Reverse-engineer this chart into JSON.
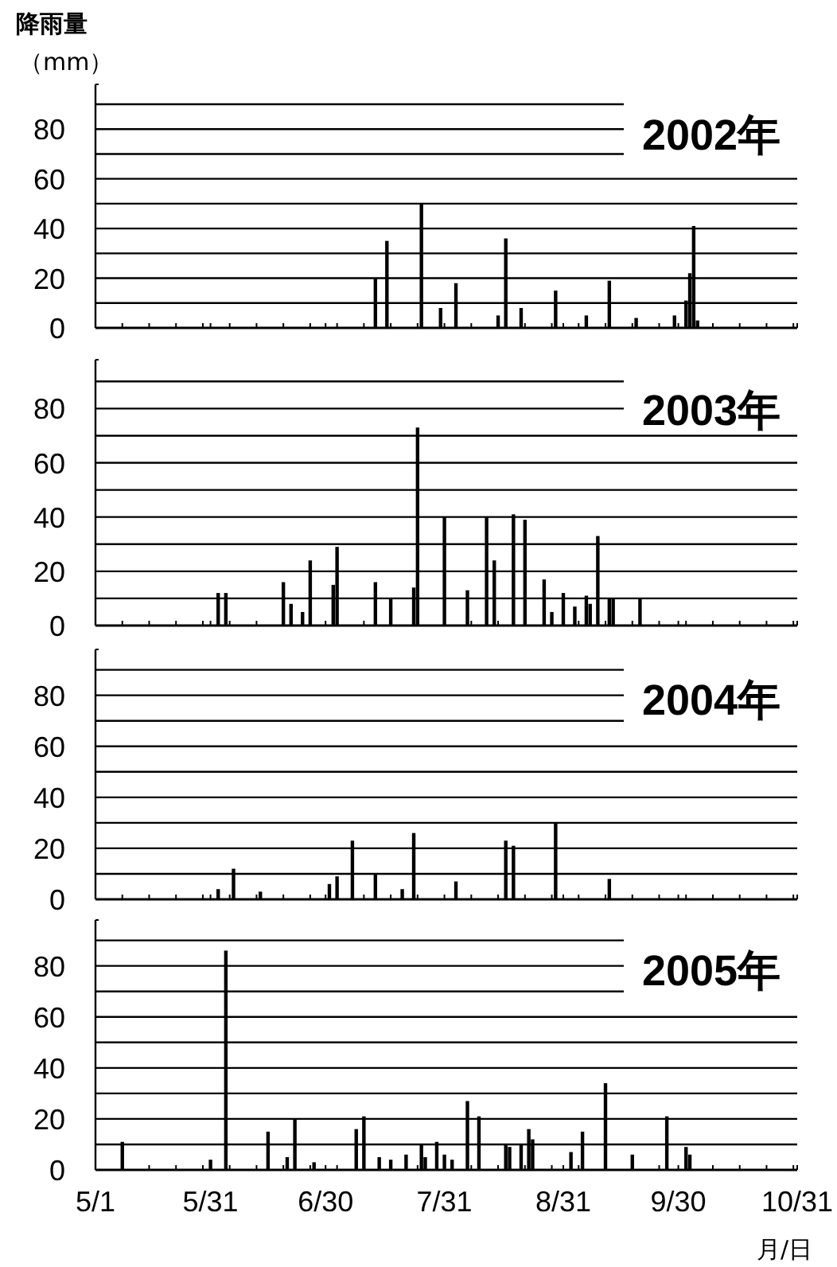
{
  "chart_data": [
    {
      "type": "bar",
      "title": "2002年",
      "ylabel": "**降雨量**（mm）",
      "color": "#000000",
      "grid": "y",
      "tick_labels": "y",
      "xlim": [
        "--05-01",
        "--10-31"
      ],
      "ylim": [
        0,
        98
      ],
      "yticks": [
        0,
        {
          "value": 10,
          "label": null
        },
        20,
        {
          "value": 30,
          "label": null
        },
        40,
        {
          "value": 50,
          "label": null
        },
        60,
        {
          "value": 70,
          "label": null
        },
        80,
        {
          "value": 90,
          "label": null
        }
      ],
      "xticks": [
        {
          "value": "--05-01",
          "label": null
        },
        {
          "value": "--05-31",
          "label": null
        },
        {
          "value": "--06-30",
          "label": null
        },
        {
          "value": "--07-31",
          "label": null
        },
        {
          "value": "--08-31",
          "label": null
        },
        {
          "value": "--09-30",
          "label": null
        },
        {
          "value": "--10-31",
          "label": null
        },
        {
          "value": "--05-08",
          "label": null
        },
        {
          "value": "--05-15",
          "label": null
        },
        {
          "value": "--05-22",
          "label": null
        },
        {
          "value": "--05-29",
          "label": null
        },
        {
          "value": "--06-05",
          "label": null
        },
        {
          "value": "--06-12",
          "label": null
        },
        {
          "value": "--06-19",
          "label": null
        },
        {
          "value": "--06-26",
          "label": null
        },
        {
          "value": "--07-03",
          "label": null
        },
        {
          "value": "--07-10",
          "label": null
        },
        {
          "value": "--07-17",
          "label": null
        },
        {
          "value": "--07-24",
          "label": null
        },
        {
          "value": "--08-07",
          "label": null
        },
        {
          "value": "--08-14",
          "label": null
        },
        {
          "value": "--08-21",
          "label": null
        },
        {
          "value": "--08-28",
          "label": null
        },
        {
          "value": "--09-04",
          "label": null
        },
        {
          "value": "--09-11",
          "label": null
        },
        {
          "value": "--09-18",
          "label": null
        },
        {
          "value": "--09-25",
          "label": null
        },
        {
          "value": "--10-02",
          "label": null
        },
        {
          "value": "--10-09",
          "label": null
        },
        {
          "value": "--10-16",
          "label": null
        },
        {
          "value": "--10-23",
          "label": null
        },
        {
          "value": "--10-30",
          "label": null
        }
      ],
      "x": [
        "--07-13",
        "--07-16",
        "--07-25",
        "--07-30",
        "--08-03",
        "--08-14",
        "--08-16",
        "--08-20",
        "--08-29",
        "--09-06",
        "--09-12",
        "--09-19",
        "--09-29",
        "--10-02",
        "--10-03",
        "--10-04",
        "--10-05"
      ],
      "values": [
        20,
        35,
        50,
        8,
        18,
        5,
        36,
        8,
        15,
        5,
        19,
        4,
        5,
        11,
        22,
        41,
        3
      ]
    },
    {
      "type": "bar",
      "title": "2003年",
      "color": "#000000",
      "grid": "y",
      "tick_labels": "y",
      "xlim": [
        "--05-01",
        "--10-31"
      ],
      "ylim": [
        0,
        98
      ],
      "yticks": [
        0,
        {
          "value": 10,
          "label": null
        },
        20,
        {
          "value": 30,
          "label": null
        },
        40,
        {
          "value": 50,
          "label": null
        },
        60,
        {
          "value": 70,
          "label": null
        },
        80,
        {
          "value": 90,
          "label": null
        }
      ],
      "xticks": [
        {
          "value": "--05-01",
          "label": null
        },
        {
          "value": "--05-31",
          "label": null
        },
        {
          "value": "--06-30",
          "label": null
        },
        {
          "value": "--07-31",
          "label": null
        },
        {
          "value": "--08-31",
          "label": null
        },
        {
          "value": "--09-30",
          "label": null
        },
        {
          "value": "--10-31",
          "label": null
        },
        {
          "value": "--05-08",
          "label": null
        },
        {
          "value": "--05-15",
          "label": null
        },
        {
          "value": "--05-22",
          "label": null
        },
        {
          "value": "--05-29",
          "label": null
        },
        {
          "value": "--06-05",
          "label": null
        },
        {
          "value": "--06-12",
          "label": null
        },
        {
          "value": "--06-19",
          "label": null
        },
        {
          "value": "--06-26",
          "label": null
        },
        {
          "value": "--07-03",
          "label": null
        },
        {
          "value": "--07-10",
          "label": null
        },
        {
          "value": "--07-17",
          "label": null
        },
        {
          "value": "--07-24",
          "label": null
        },
        {
          "value": "--08-07",
          "label": null
        },
        {
          "value": "--08-14",
          "label": null
        },
        {
          "value": "--08-21",
          "label": null
        },
        {
          "value": "--08-28",
          "label": null
        },
        {
          "value": "--09-04",
          "label": null
        },
        {
          "value": "--09-11",
          "label": null
        },
        {
          "value": "--09-18",
          "label": null
        },
        {
          "value": "--09-25",
          "label": null
        },
        {
          "value": "--10-02",
          "label": null
        },
        {
          "value": "--10-09",
          "label": null
        },
        {
          "value": "--10-16",
          "label": null
        },
        {
          "value": "--10-23",
          "label": null
        },
        {
          "value": "--10-30",
          "label": null
        }
      ],
      "x": [
        "--06-02",
        "--06-04",
        "--06-19",
        "--06-21",
        "--06-24",
        "--06-26",
        "--07-02",
        "--07-03",
        "--07-13",
        "--07-17",
        "--07-23",
        "--07-24",
        "--07-31",
        "--08-06",
        "--08-11",
        "--08-13",
        "--08-18",
        "--08-21",
        "--08-26",
        "--08-28",
        "--08-31",
        "--09-03",
        "--09-06",
        "--09-07",
        "--09-09",
        "--09-12",
        "--09-13",
        "--09-20"
      ],
      "values": [
        12,
        12,
        16,
        8,
        5,
        24,
        15,
        29,
        16,
        10,
        14,
        73,
        40,
        13,
        40,
        24,
        41,
        39,
        17,
        5,
        12,
        7,
        11,
        8,
        33,
        10,
        10,
        10
      ]
    },
    {
      "type": "bar",
      "title": "2004年",
      "color": "#000000",
      "grid": "y",
      "tick_labels": "y",
      "xlim": [
        "--05-01",
        "--10-31"
      ],
      "ylim": [
        0,
        98
      ],
      "yticks": [
        0,
        {
          "value": 10,
          "label": null
        },
        20,
        {
          "value": 30,
          "label": null
        },
        40,
        {
          "value": 50,
          "label": null
        },
        60,
        {
          "value": 70,
          "label": null
        },
        80,
        {
          "value": 90,
          "label": null
        }
      ],
      "xticks": [
        {
          "value": "--05-01",
          "label": null
        },
        {
          "value": "--05-31",
          "label": null
        },
        {
          "value": "--06-30",
          "label": null
        },
        {
          "value": "--07-31",
          "label": null
        },
        {
          "value": "--08-31",
          "label": null
        },
        {
          "value": "--09-30",
          "label": null
        },
        {
          "value": "--10-31",
          "label": null
        },
        {
          "value": "--05-08",
          "label": null
        },
        {
          "value": "--05-15",
          "label": null
        },
        {
          "value": "--05-22",
          "label": null
        },
        {
          "value": "--05-29",
          "label": null
        },
        {
          "value": "--06-05",
          "label": null
        },
        {
          "value": "--06-12",
          "label": null
        },
        {
          "value": "--06-19",
          "label": null
        },
        {
          "value": "--06-26",
          "label": null
        },
        {
          "value": "--07-03",
          "label": null
        },
        {
          "value": "--07-10",
          "label": null
        },
        {
          "value": "--07-17",
          "label": null
        },
        {
          "value": "--07-24",
          "label": null
        },
        {
          "value": "--08-07",
          "label": null
        },
        {
          "value": "--08-14",
          "label": null
        },
        {
          "value": "--08-21",
          "label": null
        },
        {
          "value": "--08-28",
          "label": null
        },
        {
          "value": "--09-04",
          "label": null
        },
        {
          "value": "--09-11",
          "label": null
        },
        {
          "value": "--09-18",
          "label": null
        },
        {
          "value": "--09-25",
          "label": null
        },
        {
          "value": "--10-02",
          "label": null
        },
        {
          "value": "--10-09",
          "label": null
        },
        {
          "value": "--10-16",
          "label": null
        },
        {
          "value": "--10-23",
          "label": null
        },
        {
          "value": "--10-30",
          "label": null
        }
      ],
      "x": [
        "--06-02",
        "--06-06",
        "--06-13",
        "--07-01",
        "--07-03",
        "--07-07",
        "--07-13",
        "--07-20",
        "--07-23",
        "--08-03",
        "--08-16",
        "--08-18",
        "--08-29",
        "--09-12"
      ],
      "values": [
        4,
        12,
        3,
        6,
        9,
        23,
        10,
        4,
        26,
        7,
        23,
        21,
        30,
        8
      ]
    },
    {
      "type": "bar",
      "title": "2005年",
      "xlabel": "月/日",
      "color": "#000000",
      "grid": "y",
      "xlim": [
        "--05-01",
        "--10-31"
      ],
      "ylim": [
        0,
        98
      ],
      "yticks": [
        0,
        {
          "value": 10,
          "label": null
        },
        20,
        {
          "value": 30,
          "label": null
        },
        40,
        {
          "value": 50,
          "label": null
        },
        60,
        {
          "value": 70,
          "label": null
        },
        80,
        {
          "value": 90,
          "label": null
        }
      ],
      "xticks": [
        {
          "value": "--05-01",
          "label": "5/1"
        },
        {
          "value": "--05-31",
          "label": "5/31"
        },
        {
          "value": "--06-30",
          "label": "6/30"
        },
        {
          "value": "--07-31",
          "label": "7/31"
        },
        {
          "value": "--08-31",
          "label": "8/31"
        },
        {
          "value": "--09-30",
          "label": "9/30"
        },
        {
          "value": "--10-31",
          "label": "10/31"
        },
        {
          "value": "--05-08",
          "label": null
        },
        {
          "value": "--05-15",
          "label": null
        },
        {
          "value": "--05-22",
          "label": null
        },
        {
          "value": "--05-29",
          "label": null
        },
        {
          "value": "--06-05",
          "label": null
        },
        {
          "value": "--06-12",
          "label": null
        },
        {
          "value": "--06-19",
          "label": null
        },
        {
          "value": "--06-26",
          "label": null
        },
        {
          "value": "--07-03",
          "label": null
        },
        {
          "value": "--07-10",
          "label": null
        },
        {
          "value": "--07-17",
          "label": null
        },
        {
          "value": "--07-24",
          "label": null
        },
        {
          "value": "--08-07",
          "label": null
        },
        {
          "value": "--08-14",
          "label": null
        },
        {
          "value": "--08-21",
          "label": null
        },
        {
          "value": "--08-28",
          "label": null
        },
        {
          "value": "--09-04",
          "label": null
        },
        {
          "value": "--09-11",
          "label": null
        },
        {
          "value": "--09-18",
          "label": null
        },
        {
          "value": "--09-25",
          "label": null
        },
        {
          "value": "--10-02",
          "label": null
        },
        {
          "value": "--10-09",
          "label": null
        },
        {
          "value": "--10-16",
          "label": null
        },
        {
          "value": "--10-23",
          "label": null
        },
        {
          "value": "--10-30",
          "label": null
        }
      ],
      "x": [
        "--05-08",
        "--05-31",
        "--06-04",
        "--06-15",
        "--06-20",
        "--06-22",
        "--06-27",
        "--07-08",
        "--07-10",
        "--07-14",
        "--07-17",
        "--07-21",
        "--07-25",
        "--07-26",
        "--07-29",
        "--07-31",
        "--08-02",
        "--08-06",
        "--08-09",
        "--08-16",
        "--08-17",
        "--08-20",
        "--08-22",
        "--08-23",
        "--09-02",
        "--09-05",
        "--09-11",
        "--09-18",
        "--09-27",
        "--10-02",
        "--10-03"
      ],
      "values": [
        11,
        4,
        86,
        15,
        5,
        20,
        3,
        16,
        21,
        5,
        4,
        6,
        10,
        5,
        11,
        6,
        4,
        27,
        21,
        10,
        9,
        10,
        16,
        12,
        7,
        15,
        34,
        6,
        21,
        9,
        6
      ]
    }
  ]
}
